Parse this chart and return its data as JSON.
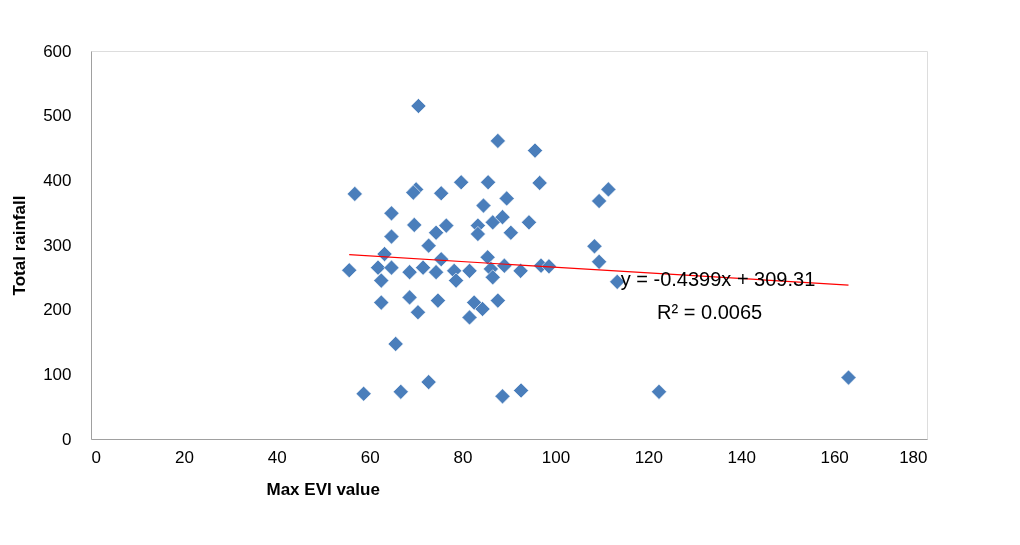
{
  "chart_data": {
    "type": "scatter",
    "xlabel": "Max EVI value",
    "ylabel": "Total rainfall",
    "xlim": [
      0,
      180
    ],
    "xticks": [
      0,
      20,
      40,
      60,
      80,
      100,
      120,
      140,
      160,
      180
    ],
    "ylim": [
      0,
      600
    ],
    "yticks": [
      0,
      100,
      200,
      300,
      400,
      500,
      600
    ],
    "grid": false,
    "marker": "diamond",
    "annotations": [
      "y = -0.4399x + 309.31",
      "R² = 0.0065"
    ],
    "series": [
      {
        "color": "#4a7ebb",
        "x": [
          70.5,
          87.6,
          95.6,
          56.8,
          70.0,
          69.4,
          75.4,
          79.7,
          85.5,
          96.6,
          89.5,
          84.5,
          64.7,
          69.6,
          76.5,
          74.3,
          83.3,
          86.5,
          88.6,
          94.3,
          90.4,
          64.7,
          83.3,
          72.7,
          63.2,
          75.4,
          85.4,
          55.6,
          61.8,
          64.7,
          62.5,
          68.6,
          71.5,
          74.3,
          78.2,
          78.6,
          81.5,
          86.1,
          86.5,
          89.0,
          92.5,
          96.9,
          98.6,
          62.5,
          68.6,
          70.4,
          74.7,
          82.5,
          84.3,
          81.5,
          87.6,
          65.6,
          58.7,
          66.7,
          72.7,
          88.6,
          92.6,
          108.4,
          109.4,
          113.3,
          111.4,
          109.4,
          122.3,
          163.1
        ],
        "values": [
          515,
          461,
          446,
          379,
          386,
          381,
          380,
          397,
          397,
          396,
          372,
          361,
          349,
          331,
          330,
          319,
          330,
          335,
          343,
          335,
          319,
          313,
          317,
          299,
          286,
          278,
          281,
          261,
          265,
          265,
          245,
          258,
          265,
          258,
          260,
          245,
          260,
          263,
          250,
          268,
          260,
          268,
          267,
          211,
          219,
          196,
          214,
          211,
          201,
          188,
          214,
          147,
          70,
          73,
          88,
          66,
          75,
          298,
          274,
          243,
          386,
          368,
          73,
          95
        ]
      },
      {
        "type": "line",
        "marker": "none",
        "color": "#ff0000",
        "x": [
          55.6,
          163.1
        ],
        "values": [
          285,
          238
        ]
      }
    ]
  }
}
